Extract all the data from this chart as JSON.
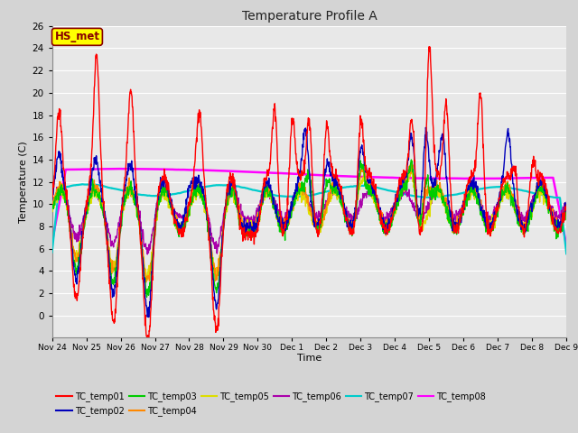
{
  "title": "Temperature Profile A",
  "xlabel": "Time",
  "ylabel": "Temperature (C)",
  "ylim": [
    -2,
    26
  ],
  "yticks": [
    0,
    2,
    4,
    6,
    8,
    10,
    12,
    14,
    16,
    18,
    20,
    22,
    24,
    26
  ],
  "fig_bg": "#d4d4d4",
  "plot_bg": "#e8e8e8",
  "grid_color": "#ffffff",
  "series_colors": {
    "TC_temp01": "#ff0000",
    "TC_temp02": "#0000bb",
    "TC_temp03": "#00cc00",
    "TC_temp04": "#ff8800",
    "TC_temp05": "#dddd00",
    "TC_temp06": "#aa00aa",
    "TC_temp07": "#00cccc",
    "TC_temp08": "#ff00ff"
  },
  "annotation_text": "HS_met",
  "annotation_fg": "#880000",
  "annotation_bg": "#ffff00",
  "xtick_labels": [
    "Nov 24",
    "Nov 25",
    "Nov 26",
    "Nov 27",
    "Nov 28",
    "Nov 29",
    "Nov 30",
    "Dec 1",
    "Dec 2",
    "Dec 3",
    "Dec 4",
    "Dec 5",
    "Dec 6",
    "Dec 7",
    "Dec 8",
    "Dec 9"
  ],
  "legend_entries": [
    "TC_temp01",
    "TC_temp02",
    "TC_temp03",
    "TC_temp04",
    "TC_temp05",
    "TC_temp06",
    "TC_temp07",
    "TC_temp08"
  ]
}
